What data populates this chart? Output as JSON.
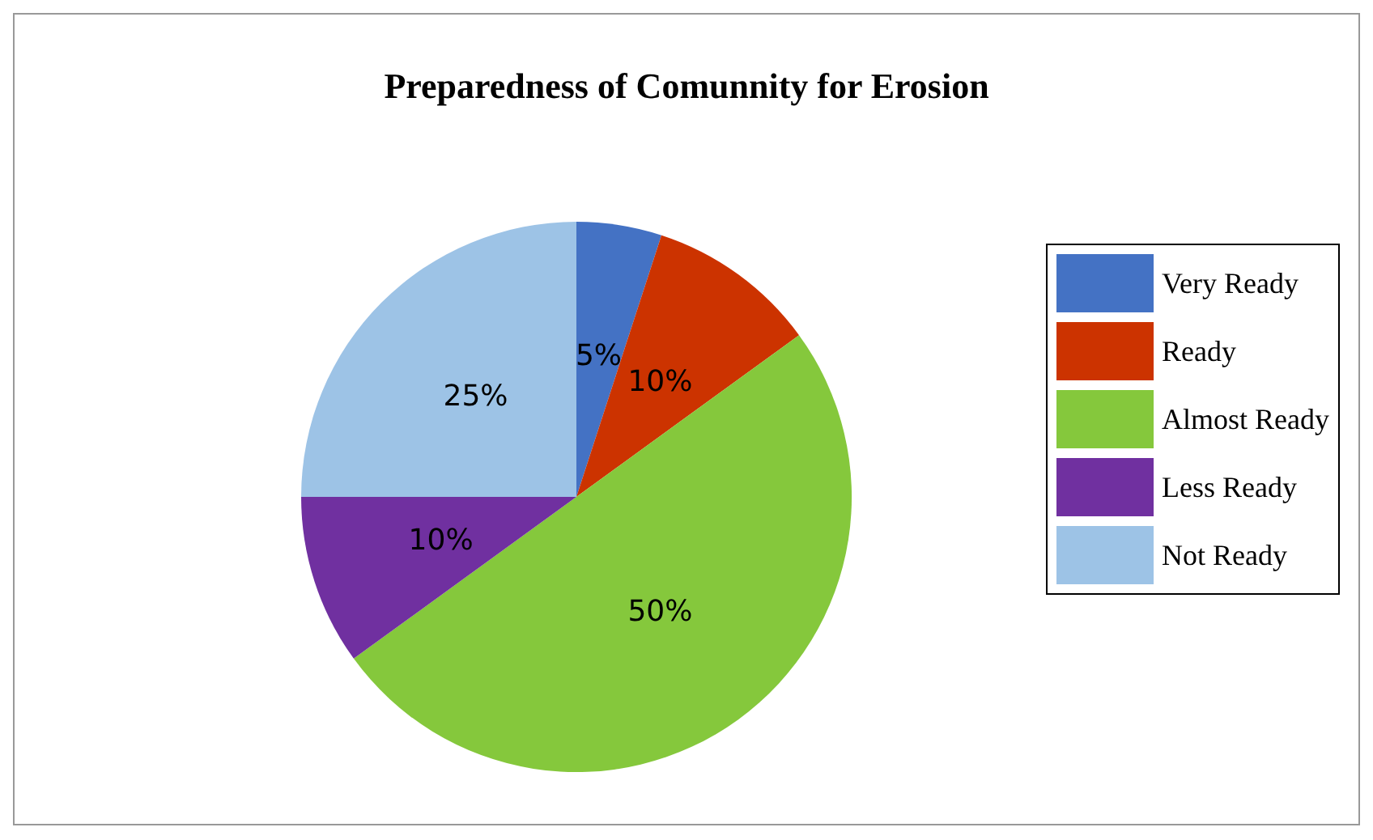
{
  "chart_data": {
    "type": "pie",
    "title": "Preparedness of Comunnity for Erosion",
    "categories": [
      "Very Ready",
      "Ready",
      "Almost Ready",
      "Less Ready",
      "Not Ready"
    ],
    "values": [
      5,
      10,
      50,
      10,
      25
    ],
    "colors": [
      "#4472c4",
      "#cc3300",
      "#85c83c",
      "#7030a0",
      "#9dc3e6"
    ],
    "value_labels": [
      "5%",
      "10%",
      "50%",
      "10%",
      "25%"
    ],
    "legend": "right"
  }
}
